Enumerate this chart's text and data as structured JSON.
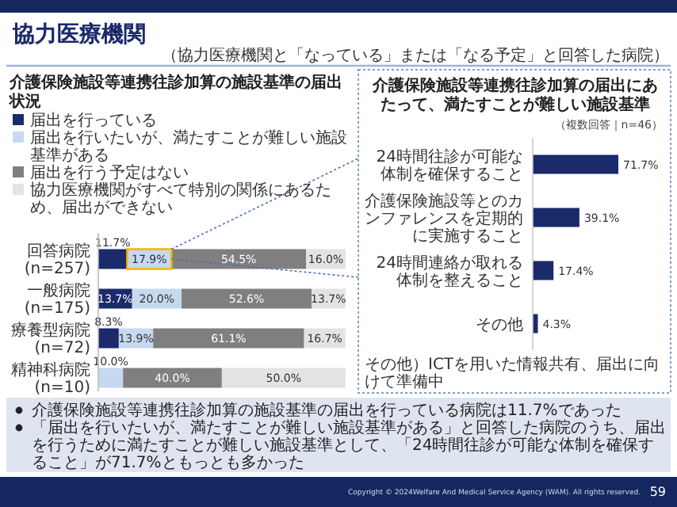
{
  "chart_data": [
    {
      "type": "bar",
      "orientation": "horizontal",
      "stacked": true,
      "title": "介護保険施設等連携往診加算の施設基準の届出状況",
      "categories": [
        "回答病院\n(n=257)",
        "一般病院\n(n=175)",
        "療養型病院\n(n=72)",
        "精神科病院\n(n=10)"
      ],
      "legend": "top",
      "series": [
        {
          "name": "届出を行っている",
          "color": "#1b2a6b",
          "values": [
            11.7,
            13.7,
            8.3,
            0
          ],
          "value_labels": [
            "11.7%",
            "13.7%",
            "8.3%",
            null
          ]
        },
        {
          "name": "届出を行いたいが、満たすことが難しい施設基準がある",
          "color": "#c6d9f0",
          "values": [
            17.9,
            20.0,
            13.9,
            10.0
          ],
          "value_labels": [
            "17.9%",
            "20.0%",
            "13.9%",
            "10.0%"
          ]
        },
        {
          "name": "届出を行う予定はない",
          "color": "#7f7f7f",
          "values": [
            54.5,
            52.6,
            61.1,
            40.0
          ],
          "value_labels": [
            "54.5%",
            "52.6%",
            "61.1%",
            "40.0%"
          ]
        },
        {
          "name": "協力医療機関がすべて特別の関係にあるため、届出ができない",
          "color": "#e3e3e3",
          "values": [
            16.0,
            13.7,
            16.7,
            50.0
          ],
          "value_labels": [
            "16.0%",
            "13.7%",
            "16.7%",
            "50.0%"
          ]
        }
      ],
      "annotations": [
        "協力医療機関",
        "（協力医療機関と「なっている」または「なる予定」と回答した病院）",
        "介護保険施設等連携往診加算の施設基準の届出を行っている病院は11.7%であった",
        "「届出を行いたいが、満たすことが難しい施設基準がある」と回答した病院のうち、届出を行うために満たすことが難しい施設基準として、「24時間往診が可能な体制を確保すること」が71.7%ともっとも多かった",
        "Copyright © 2024Welfare And Medical Service Agency (WAM). All rights reserved.",
        "59"
      ]
    },
    {
      "type": "bar",
      "orientation": "horizontal",
      "title": "介護保険施設等連携往診加算の届出にあたって、満たすことが難しい施設基準",
      "subtitle": "（複数回答｜n=46）",
      "categories": [
        "24時間往診が可能な体制を確保すること",
        "介護保険施設等とのカンファレンスを定期的に実施すること",
        "24時間連絡が取れる体制を整えること",
        "その他"
      ],
      "series": [
        {
          "color": "#1b2a6b",
          "values": [
            71.7,
            39.1,
            17.4,
            4.3
          ],
          "value_labels": [
            "71.7%",
            "39.1%",
            "17.4%",
            "4.3%"
          ]
        }
      ],
      "annotations": [
        "その他）ICTを用いた情報共有、届出に向けて準備中"
      ]
    }
  ]
}
